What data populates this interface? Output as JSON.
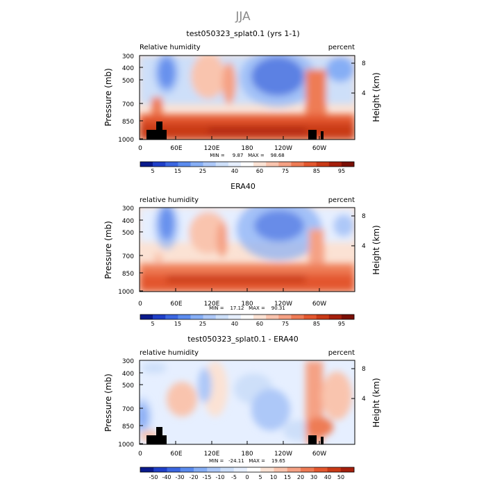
{
  "figure": {
    "season": "JJA"
  },
  "chart_data": [
    {
      "type": "heatmap",
      "title": "test050323_splat0.1 (yrs 1-1)",
      "left_label": "Relative humidity",
      "right_label": "percent",
      "xlabel": "",
      "ylabel": "Pressure (mb)",
      "ylabel_right": "Height (km)",
      "x_ticks": [
        "0",
        "60E",
        "120E",
        "180",
        "120W",
        "60W"
      ],
      "y_ticks": [
        "300",
        "400",
        "500",
        "700",
        "850",
        "1000"
      ],
      "y_ticks_right": [
        "8",
        "4"
      ],
      "ylim": [
        1000,
        300
      ],
      "stats": "MIN =     9.87   MAX =    98.68",
      "min": 9.87,
      "max": 98.68,
      "colorbar_labels": [
        "5",
        "15",
        "25",
        "40",
        "60",
        "75",
        "85",
        "95"
      ],
      "colorbar_colors": [
        "#0a1a8c",
        "#1f3fc8",
        "#3b66e0",
        "#5b8bee",
        "#86aef5",
        "#adc8f8",
        "#cddff9",
        "#e6efff",
        "#ffffff",
        "#fbe2d4",
        "#f9c4ae",
        "#f5a184",
        "#ee7b55",
        "#e3572e",
        "#c93a17",
        "#a51f0c",
        "#7a0f05"
      ]
    },
    {
      "type": "heatmap",
      "title": "ERA40",
      "left_label": "relative humidity",
      "right_label": "percent",
      "xlabel": "",
      "ylabel": "Pressure (mb)",
      "ylabel_right": "Height (km)",
      "x_ticks": [
        "0",
        "60E",
        "120E",
        "180",
        "120W",
        "60W"
      ],
      "y_ticks": [
        "300",
        "400",
        "500",
        "700",
        "850",
        "1000"
      ],
      "y_ticks_right": [
        "8",
        "4"
      ],
      "ylim": [
        1000,
        300
      ],
      "stats": "MIN =    17.12   MAX =    90.31",
      "min": 17.12,
      "max": 90.31,
      "colorbar_labels": [
        "5",
        "15",
        "25",
        "40",
        "60",
        "75",
        "85",
        "95"
      ],
      "colorbar_colors": [
        "#0a1a8c",
        "#1f3fc8",
        "#3b66e0",
        "#5b8bee",
        "#86aef5",
        "#adc8f8",
        "#cddff9",
        "#e6efff",
        "#ffffff",
        "#fbe2d4",
        "#f9c4ae",
        "#f5a184",
        "#ee7b55",
        "#e3572e",
        "#c93a17",
        "#a51f0c",
        "#7a0f05"
      ]
    },
    {
      "type": "heatmap",
      "title": "test050323_splat0.1 - ERA40",
      "left_label": "relative humidity",
      "right_label": "percent",
      "xlabel": "",
      "ylabel": "Pressure (mb)",
      "ylabel_right": "Height (km)",
      "x_ticks": [
        "0",
        "60E",
        "120E",
        "180",
        "120W",
        "60W"
      ],
      "y_ticks": [
        "300",
        "400",
        "500",
        "700",
        "850",
        "1000"
      ],
      "y_ticks_right": [
        "8",
        "4"
      ],
      "ylim": [
        1000,
        300
      ],
      "stats": "MIN =   -24.11   MAX =    19.65",
      "min": -24.11,
      "max": 19.65,
      "colorbar_labels": [
        "-50",
        "-40",
        "-30",
        "-20",
        "-15",
        "-10",
        "-5",
        "0",
        "5",
        "10",
        "15",
        "20",
        "30",
        "40",
        "50"
      ],
      "colorbar_colors": [
        "#0a1a8c",
        "#1f3fc8",
        "#3b66e0",
        "#5b8bee",
        "#86aef5",
        "#adc8f8",
        "#cddff9",
        "#e6efff",
        "#ffffff",
        "#fbe2d4",
        "#f9c4ae",
        "#f5a184",
        "#ee7b55",
        "#e3572e",
        "#c93a17",
        "#a51f0c"
      ]
    }
  ]
}
